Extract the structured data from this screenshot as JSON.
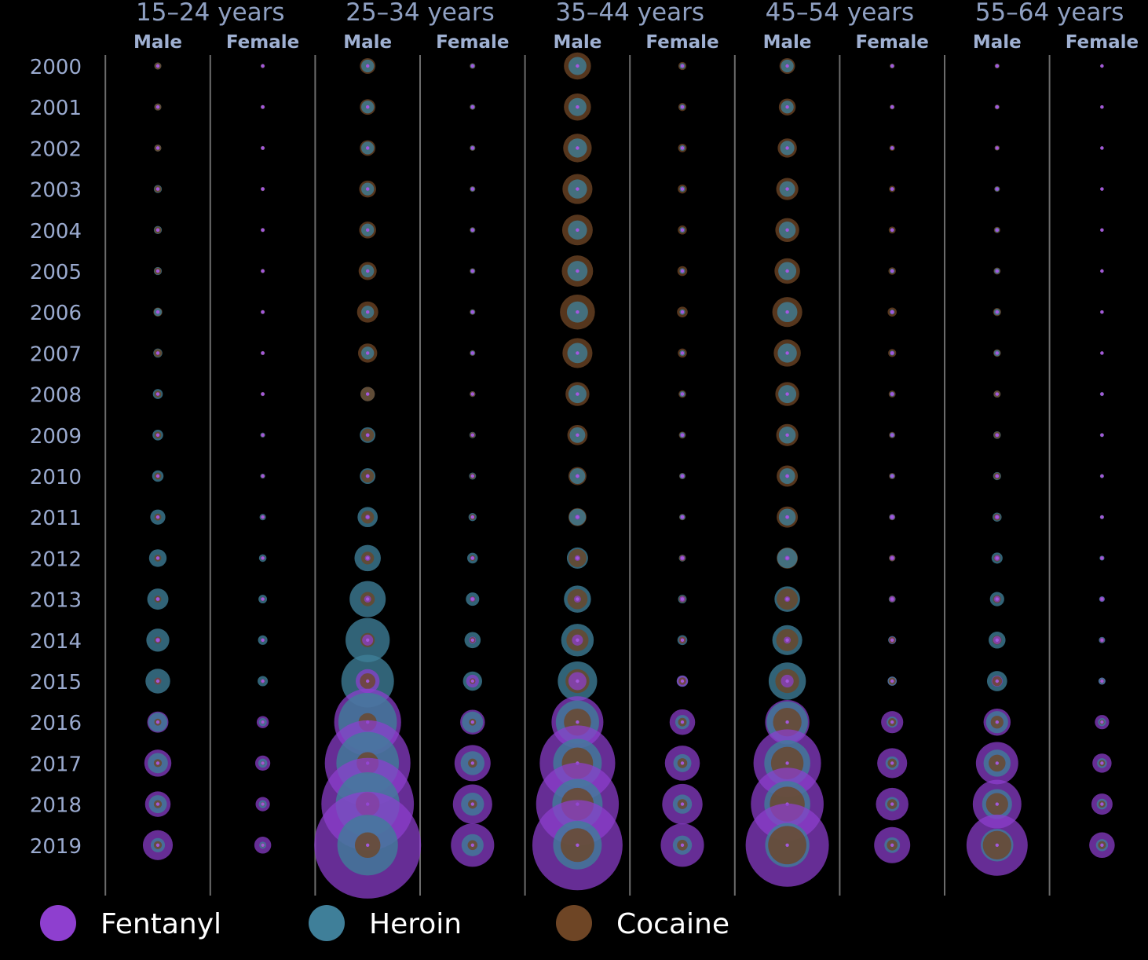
{
  "chart_data": {
    "type": "bubble-grid",
    "age_groups": [
      "15–24 years",
      "25–34 years",
      "35–44 years",
      "45–54 years",
      "55–64 years"
    ],
    "sexes": [
      "Male",
      "Female"
    ],
    "years": [
      "2000",
      "2001",
      "2002",
      "2003",
      "2004",
      "2005",
      "2006",
      "2007",
      "2008",
      "2009",
      "2010",
      "2011",
      "2012",
      "2013",
      "2014",
      "2015",
      "2016",
      "2017",
      "2018",
      "2019"
    ],
    "size_unit": "relative bubble area (approximate)",
    "colors": {
      "Fentanyl": "#8e3fcf",
      "Heroin": "#3f7f99",
      "Cocaine": "#6e4525"
    },
    "legend": [
      {
        "name": "Fentanyl",
        "color": "#8e3fcf"
      },
      {
        "name": "Heroin",
        "color": "#3f7f99"
      },
      {
        "name": "Cocaine",
        "color": "#6e4525"
      }
    ],
    "grid": false,
    "legend_placement": "bottom",
    "series": [
      {
        "age": "15–24 years",
        "sex": "Male",
        "Fentanyl": [
          1,
          1,
          1,
          1,
          1,
          1,
          1,
          1,
          1,
          1,
          1,
          1,
          1,
          2,
          3,
          6,
          55,
          90,
          80,
          110
        ],
        "Heroin": [
          6,
          6,
          6,
          8,
          8,
          8,
          8,
          10,
          12,
          14,
          16,
          28,
          38,
          55,
          65,
          75,
          45,
          50,
          40,
          25
        ],
        "Cocaine": [
          6,
          6,
          6,
          6,
          6,
          6,
          10,
          8,
          6,
          6,
          6,
          6,
          6,
          6,
          6,
          6,
          6,
          8,
          8,
          8
        ]
      },
      {
        "age": "15–24 years",
        "sex": "Female",
        "Fentanyl": [
          1,
          1,
          1,
          1,
          1,
          1,
          1,
          1,
          1,
          1,
          1,
          1,
          1,
          1,
          1,
          2,
          18,
          28,
          25,
          35
        ],
        "Heroin": [
          2,
          2,
          2,
          2,
          2,
          2,
          2,
          2,
          2,
          3,
          3,
          5,
          7,
          9,
          11,
          13,
          8,
          10,
          8,
          6
        ],
        "Cocaine": [
          2,
          2,
          2,
          2,
          2,
          2,
          2,
          2,
          2,
          2,
          2,
          2,
          2,
          2,
          2,
          2,
          2,
          2,
          2,
          2
        ]
      },
      {
        "age": "25–34 years",
        "sex": "Male",
        "Fentanyl": [
          1,
          1,
          1,
          1,
          1,
          1,
          1,
          1,
          1,
          2,
          2,
          3,
          4,
          6,
          15,
          70,
          550,
          900,
          1050,
          1400
        ],
        "Heroin": [
          20,
          20,
          20,
          20,
          20,
          20,
          20,
          20,
          25,
          30,
          30,
          50,
          85,
          160,
          240,
          340,
          420,
          480,
          500,
          450
        ],
        "Cocaine": [
          30,
          30,
          30,
          35,
          35,
          40,
          55,
          45,
          25,
          20,
          20,
          20,
          20,
          25,
          25,
          30,
          40,
          60,
          70,
          80
        ]
      },
      {
        "age": "25–34 years",
        "sex": "Female",
        "Fentanyl": [
          1,
          1,
          1,
          1,
          1,
          1,
          1,
          1,
          1,
          1,
          1,
          1,
          2,
          3,
          6,
          20,
          75,
          160,
          190,
          230
        ],
        "Heroin": [
          3,
          3,
          3,
          3,
          3,
          3,
          3,
          3,
          4,
          5,
          6,
          8,
          14,
          22,
          32,
          45,
          55,
          70,
          65,
          60
        ],
        "Cocaine": [
          4,
          4,
          4,
          4,
          4,
          4,
          4,
          4,
          4,
          4,
          4,
          4,
          4,
          4,
          4,
          4,
          6,
          10,
          10,
          12
        ]
      },
      {
        "age": "35–44 years",
        "sex": "Male",
        "Fentanyl": [
          1,
          1,
          1,
          1,
          1,
          1,
          1,
          1,
          1,
          1,
          2,
          3,
          4,
          6,
          15,
          40,
          330,
          700,
          840,
          1000
        ],
        "Heroin": [
          40,
          40,
          45,
          45,
          45,
          50,
          55,
          50,
          40,
          30,
          30,
          35,
          55,
          90,
          130,
          190,
          230,
          290,
          310,
          290
        ],
        "Cocaine": [
          90,
          90,
          100,
          110,
          115,
          120,
          150,
          110,
          70,
          50,
          40,
          40,
          40,
          50,
          60,
          70,
          90,
          120,
          130,
          140
        ]
      },
      {
        "age": "35–44 years",
        "sex": "Female",
        "Fentanyl": [
          1,
          1,
          1,
          1,
          1,
          1,
          1,
          1,
          1,
          2,
          2,
          2,
          3,
          4,
          6,
          15,
          80,
          150,
          200,
          230
        ],
        "Heroin": [
          4,
          4,
          4,
          4,
          4,
          4,
          4,
          4,
          4,
          4,
          4,
          4,
          6,
          9,
          12,
          16,
          25,
          40,
          45,
          45
        ],
        "Cocaine": [
          8,
          8,
          9,
          10,
          10,
          12,
          14,
          10,
          7,
          6,
          5,
          5,
          5,
          6,
          6,
          7,
          9,
          12,
          12,
          14
        ]
      },
      {
        "age": "45–54 years",
        "sex": "Male",
        "Fentanyl": [
          1,
          1,
          1,
          1,
          1,
          1,
          1,
          1,
          1,
          1,
          2,
          2,
          3,
          4,
          6,
          20,
          240,
          560,
          650,
          850
        ],
        "Heroin": [
          20,
          20,
          25,
          30,
          35,
          40,
          50,
          45,
          40,
          35,
          30,
          35,
          50,
          80,
          110,
          170,
          210,
          260,
          260,
          240
        ],
        "Cocaine": [
          30,
          35,
          45,
          60,
          70,
          80,
          110,
          90,
          70,
          60,
          55,
          55,
          55,
          55,
          60,
          70,
          100,
          130,
          150,
          180
        ]
      },
      {
        "age": "45–54 years",
        "sex": "Female",
        "Fentanyl": [
          1,
          1,
          1,
          1,
          1,
          1,
          2,
          2,
          2,
          3,
          3,
          3,
          3,
          4,
          6,
          10,
          60,
          110,
          130,
          160
        ],
        "Heroin": [
          2,
          2,
          2,
          2,
          2,
          3,
          3,
          3,
          3,
          3,
          3,
          4,
          5,
          6,
          8,
          10,
          15,
          22,
          25,
          30
        ],
        "Cocaine": [
          3,
          3,
          4,
          5,
          6,
          7,
          10,
          8,
          6,
          5,
          5,
          5,
          5,
          5,
          5,
          6,
          8,
          10,
          12,
          14
        ]
      },
      {
        "age": "55–64 years",
        "sex": "Male",
        "Fentanyl": [
          1,
          1,
          1,
          1,
          1,
          1,
          1,
          1,
          1,
          2,
          2,
          3,
          4,
          5,
          8,
          15,
          90,
          220,
          290,
          460
        ],
        "Heroin": [
          2,
          2,
          3,
          3,
          3,
          4,
          5,
          5,
          6,
          7,
          8,
          10,
          15,
          25,
          35,
          50,
          60,
          90,
          110,
          130
        ],
        "Cocaine": [
          3,
          3,
          3,
          4,
          5,
          6,
          8,
          7,
          6,
          6,
          6,
          6,
          6,
          8,
          10,
          12,
          20,
          35,
          60,
          100
        ]
      },
      {
        "age": "55–64 years",
        "sex": "Female",
        "Fentanyl": [
          1,
          1,
          1,
          1,
          1,
          1,
          1,
          1,
          1,
          1,
          1,
          2,
          2,
          3,
          3,
          6,
          25,
          45,
          55,
          80
        ],
        "Heroin": [
          1,
          1,
          1,
          1,
          1,
          1,
          1,
          1,
          2,
          2,
          2,
          2,
          3,
          4,
          5,
          6,
          8,
          12,
          14,
          18
        ],
        "Cocaine": [
          1,
          1,
          1,
          1,
          1,
          1,
          1,
          1,
          1,
          1,
          1,
          1,
          1,
          1,
          2,
          2,
          3,
          5,
          6,
          8
        ]
      }
    ]
  }
}
